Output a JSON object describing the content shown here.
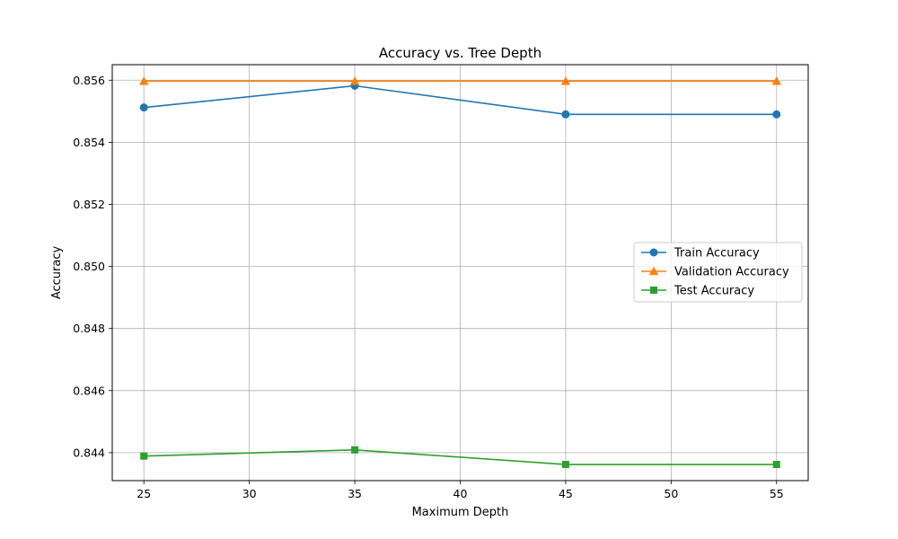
{
  "chart_data": {
    "type": "line",
    "title": "Accuracy vs. Tree Depth",
    "xlabel": "Maximum Depth",
    "ylabel": "Accuracy",
    "x": [
      25,
      35,
      45,
      55
    ],
    "xlim": [
      23.5,
      56.5
    ],
    "ylim": [
      0.8431,
      0.8565
    ],
    "xticks": [
      25,
      30,
      35,
      40,
      45,
      50,
      55
    ],
    "xtick_labels": [
      "25",
      "30",
      "35",
      "40",
      "45",
      "50",
      "55"
    ],
    "yticks": [
      0.844,
      0.846,
      0.848,
      0.85,
      0.852,
      0.854,
      0.856
    ],
    "ytick_labels": [
      "0.844",
      "0.846",
      "0.848",
      "0.850",
      "0.852",
      "0.854",
      "0.856"
    ],
    "grid": true,
    "legend_position": "center-right",
    "series": [
      {
        "name": "Train Accuracy",
        "values": [
          0.85512,
          0.85582,
          0.8549,
          0.8549
        ],
        "color": "#1f77b4",
        "marker": "circle"
      },
      {
        "name": "Validation Accuracy",
        "values": [
          0.85597,
          0.85597,
          0.85597,
          0.85597
        ],
        "color": "#ff7f0e",
        "marker": "triangle"
      },
      {
        "name": "Test Accuracy",
        "values": [
          0.84389,
          0.84409,
          0.84362,
          0.84362
        ],
        "color": "#2ca02c",
        "marker": "square"
      }
    ]
  }
}
